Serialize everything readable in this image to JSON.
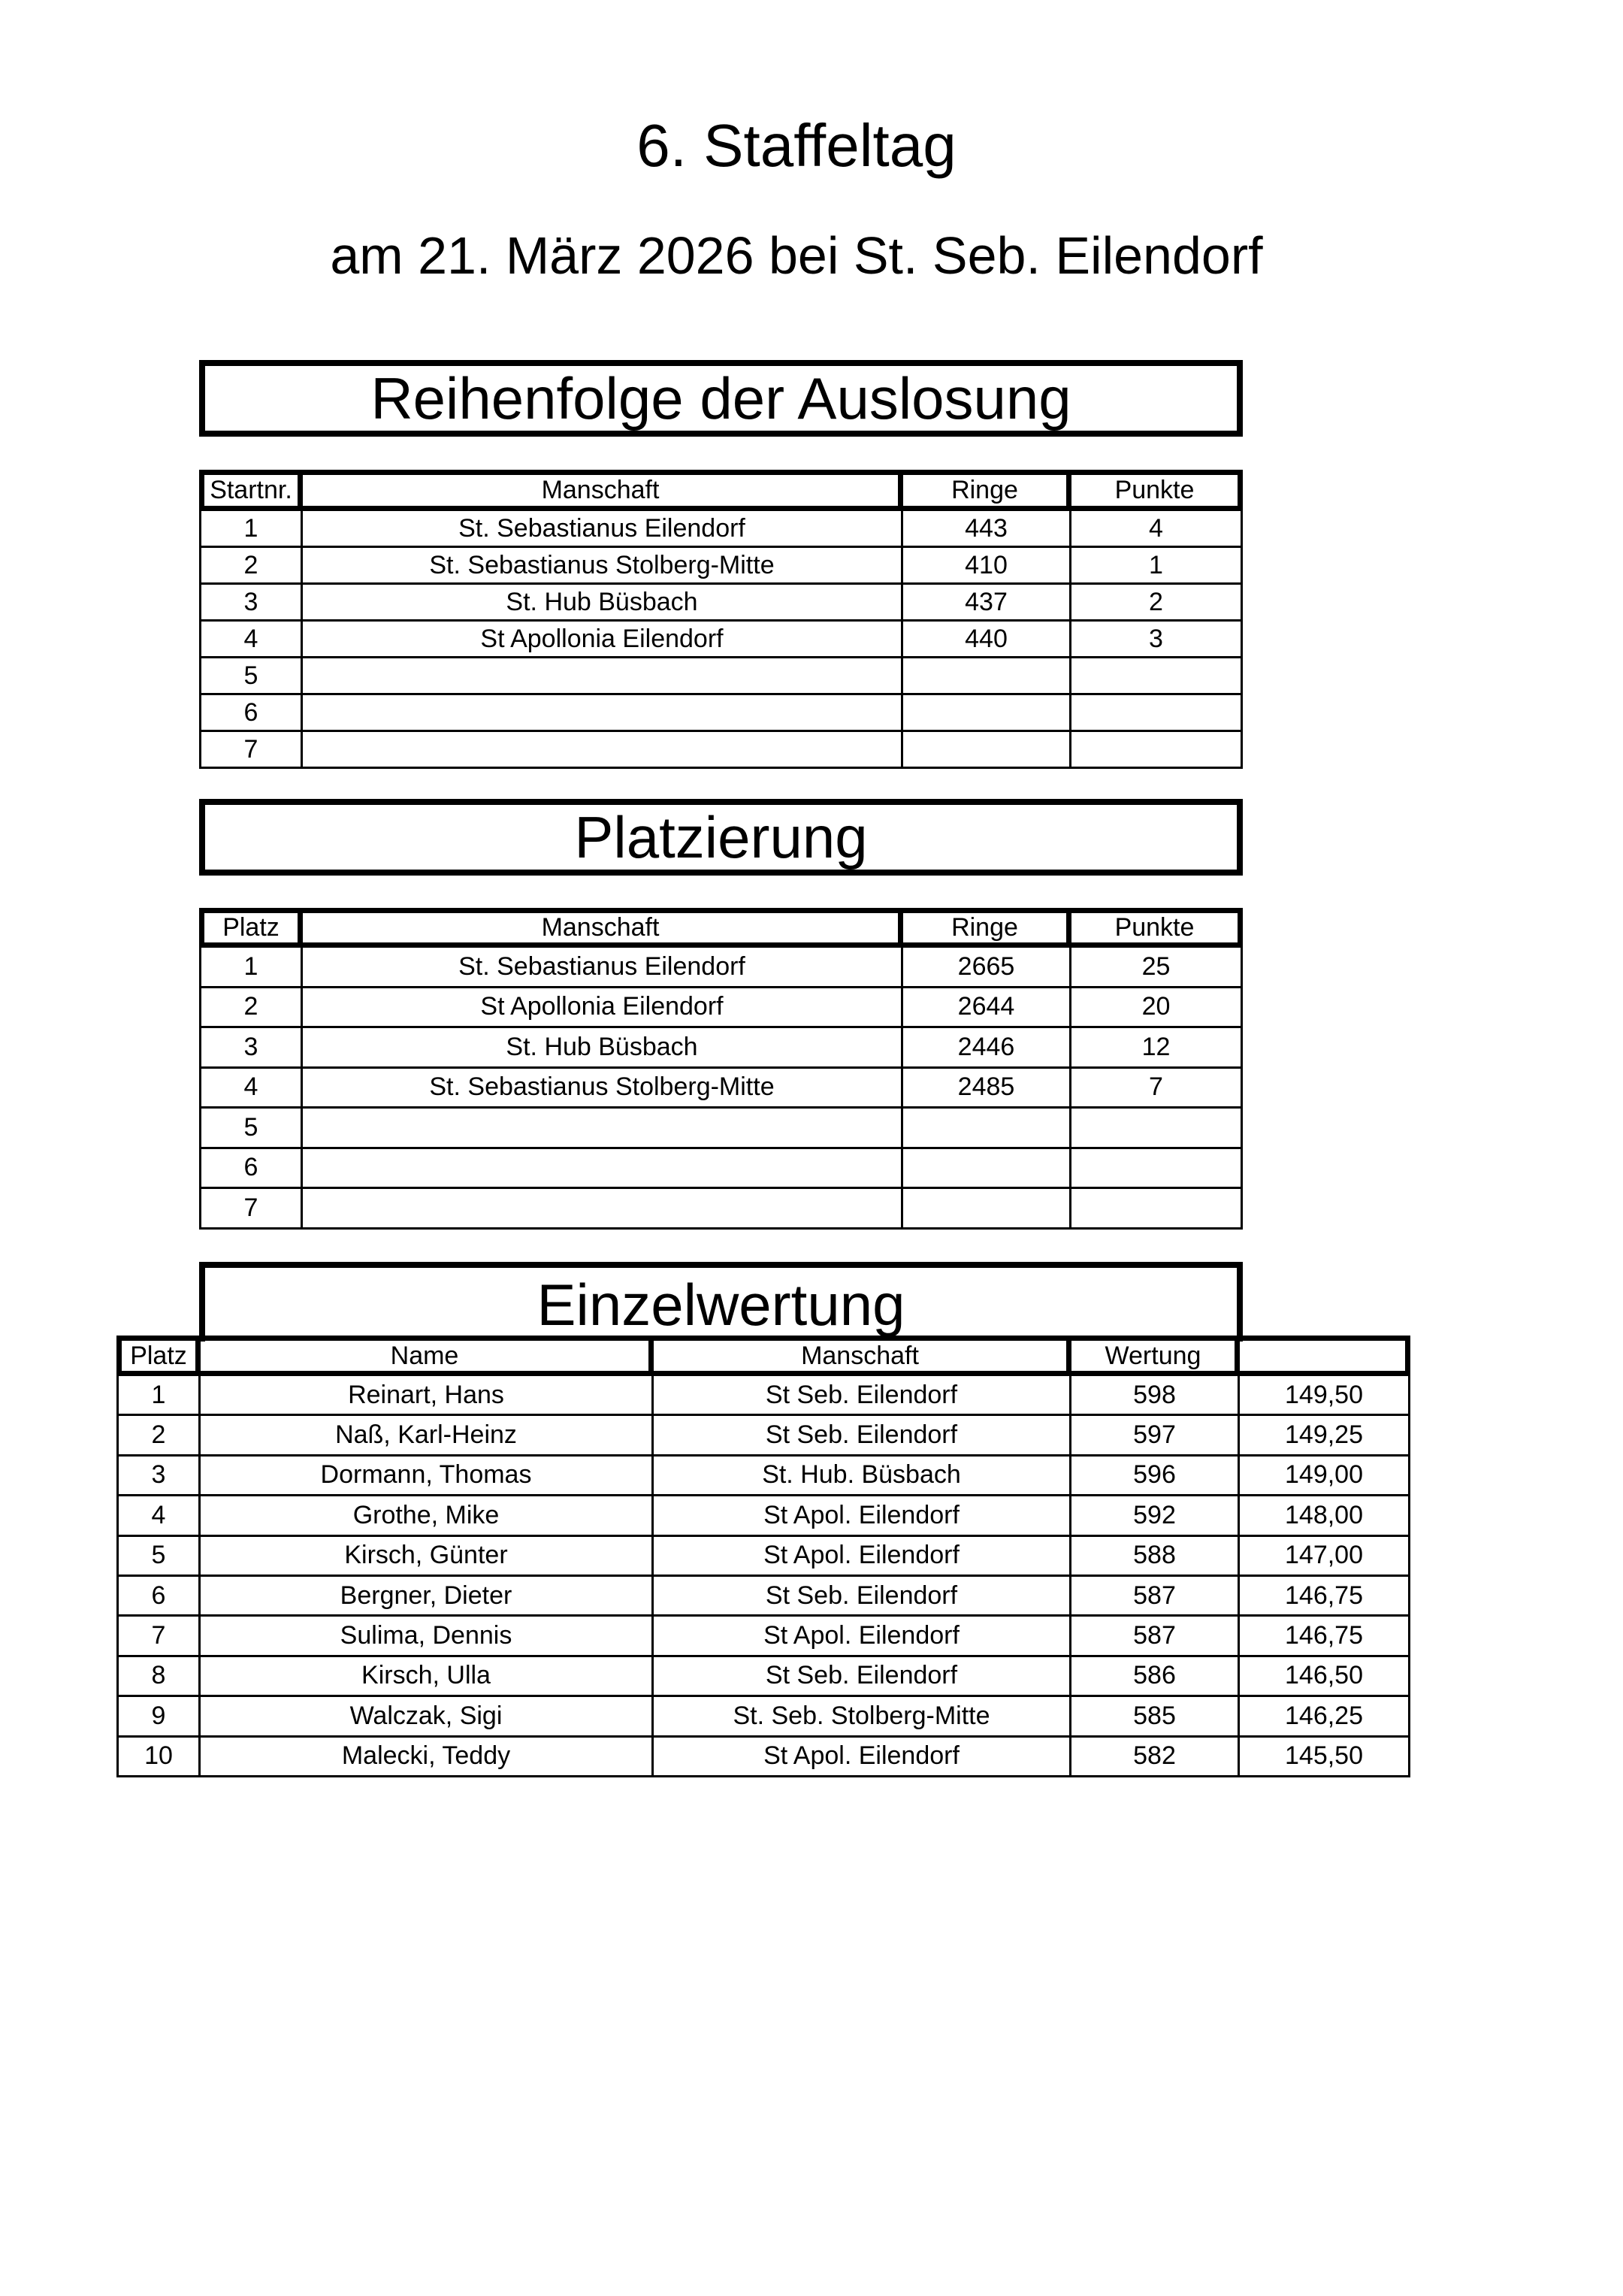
{
  "header": {
    "title": "6. Staffeltag",
    "subtitle": "am 21. März 2026 bei St. Seb. Eilendorf"
  },
  "auslosung": {
    "heading": "Reihenfolge der Auslosung",
    "columns": [
      "Startnr.",
      "Manschaft",
      "Ringe",
      "Punkte"
    ],
    "rows": [
      [
        "1",
        "St. Sebastianus Eilendorf",
        "443",
        "4"
      ],
      [
        "2",
        "St. Sebastianus Stolberg-Mitte",
        "410",
        "1"
      ],
      [
        "3",
        "St. Hub Büsbach",
        "437",
        "2"
      ],
      [
        "4",
        "St Apollonia Eilendorf",
        "440",
        "3"
      ],
      [
        "5",
        "",
        "",
        ""
      ],
      [
        "6",
        "",
        "",
        ""
      ],
      [
        "7",
        "",
        "",
        ""
      ]
    ]
  },
  "platzierung": {
    "heading": "Platzierung",
    "columns": [
      "Platz",
      "Manschaft",
      "Ringe",
      "Punkte"
    ],
    "rows": [
      [
        "1",
        "St. Sebastianus Eilendorf",
        "2665",
        "25"
      ],
      [
        "2",
        "St Apollonia Eilendorf",
        "2644",
        "20"
      ],
      [
        "3",
        "St. Hub Büsbach",
        "2446",
        "12"
      ],
      [
        "4",
        "St. Sebastianus Stolberg-Mitte",
        "2485",
        "7"
      ],
      [
        "5",
        "",
        "",
        ""
      ],
      [
        "6",
        "",
        "",
        ""
      ],
      [
        "7",
        "",
        "",
        ""
      ]
    ]
  },
  "einzelwertung": {
    "heading": "Einzelwertung",
    "columns": [
      "Platz",
      "Name",
      "Manschaft",
      "Wertung",
      ""
    ],
    "rows": [
      [
        "1",
        "Reinart, Hans",
        "St Seb. Eilendorf",
        "598",
        "149,50"
      ],
      [
        "2",
        "Naß, Karl-Heinz",
        "St Seb. Eilendorf",
        "597",
        "149,25"
      ],
      [
        "3",
        "Dormann, Thomas",
        "St. Hub. Büsbach",
        "596",
        "149,00"
      ],
      [
        "4",
        "Grothe, Mike",
        "St Apol. Eilendorf",
        "592",
        "148,00"
      ],
      [
        "5",
        "Kirsch, Günter",
        "St Apol. Eilendorf",
        "588",
        "147,00"
      ],
      [
        "6",
        "Bergner, Dieter",
        "St Seb. Eilendorf",
        "587",
        "146,75"
      ],
      [
        "7",
        "Sulima, Dennis",
        "St Apol. Eilendorf",
        "587",
        "146,75"
      ],
      [
        "8",
        "Kirsch, Ulla",
        "St Seb. Eilendorf",
        "586",
        "146,50"
      ],
      [
        "9",
        "Walczak, Sigi",
        "St. Seb. Stolberg-Mitte",
        "585",
        "146,25"
      ],
      [
        "10",
        "Malecki, Teddy",
        "St Apol. Eilendorf",
        "582",
        "145,50"
      ]
    ]
  }
}
